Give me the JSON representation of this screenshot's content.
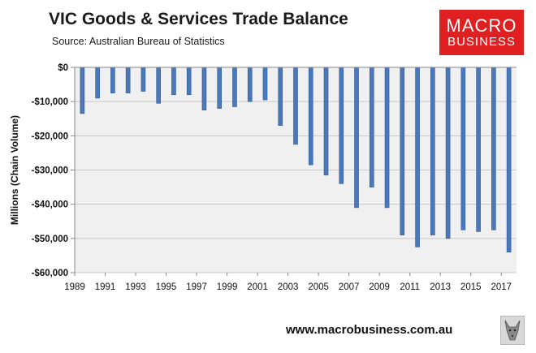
{
  "header": {
    "title": "VIC Goods & Services Trade Balance",
    "source": "Source:  Australian Bureau of Statistics"
  },
  "logo": {
    "line1": "MACRO",
    "line2": "BUSINESS"
  },
  "footer": {
    "url": "www.macrobusiness.com.au"
  },
  "colors": {
    "bar": "#4a78b8",
    "bar_edge": "#2f5a95",
    "plot_bg": "#f0f0f0",
    "grid": "#c8c8c8",
    "logo_bg": "#e02020"
  },
  "chart_data": {
    "type": "bar",
    "title": "VIC Goods & Services Trade Balance",
    "subtitle": "Source:  Australian Bureau of Statistics",
    "xlabel": "",
    "ylabel": "Millions (Chain Volume)",
    "ylim": [
      -60000,
      0
    ],
    "yticks": [
      0,
      -10000,
      -20000,
      -30000,
      -40000,
      -50000,
      -60000
    ],
    "ytick_labels": [
      "$0",
      "-$10,000",
      "-$20,000",
      "-$30,000",
      "-$40,000",
      "-$50,000",
      "-$60,000"
    ],
    "grid": true,
    "categories": [
      "1990",
      "1991",
      "1992",
      "1993",
      "1994",
      "1995",
      "1996",
      "1997",
      "1998",
      "1999",
      "2000",
      "2001",
      "2002",
      "2003",
      "2004",
      "2005",
      "2006",
      "2007",
      "2008",
      "2009",
      "2010",
      "2011",
      "2012",
      "2013",
      "2014",
      "2015",
      "2016",
      "2017",
      "2018"
    ],
    "values": [
      -13500,
      -9000,
      -7500,
      -7500,
      -7000,
      -10500,
      -8000,
      -8000,
      -12500,
      -12000,
      -11500,
      -10000,
      -9500,
      -17000,
      -22500,
      -28500,
      -31500,
      -34000,
      -41000,
      -35000,
      -41000,
      -49000,
      -52500,
      -49000,
      -50000,
      -47500,
      -48000,
      -47500,
      -54000
    ],
    "xtick_labels": [
      "1989",
      "1991",
      "1993",
      "1995",
      "1997",
      "1999",
      "2001",
      "2003",
      "2005",
      "2007",
      "2009",
      "2011",
      "2013",
      "2015",
      "2017"
    ]
  }
}
